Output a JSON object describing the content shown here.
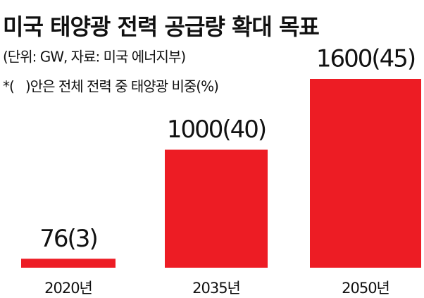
{
  "chart_data": {
    "type": "bar",
    "title": "미국 태양광 전력 공급량 확대 목표",
    "subtitle": "(단위: GW, 자료: 미국 에너지부)",
    "note": "*(   )안은 전체 전력 중 태양광 비중(%)",
    "categories": [
      "2020년",
      "2035년",
      "2050년"
    ],
    "values": [
      76,
      1000,
      1600
    ],
    "value_labels": [
      "76(3)",
      "1000(40)",
      "1600(45)"
    ],
    "color": "#ed1c24"
  }
}
